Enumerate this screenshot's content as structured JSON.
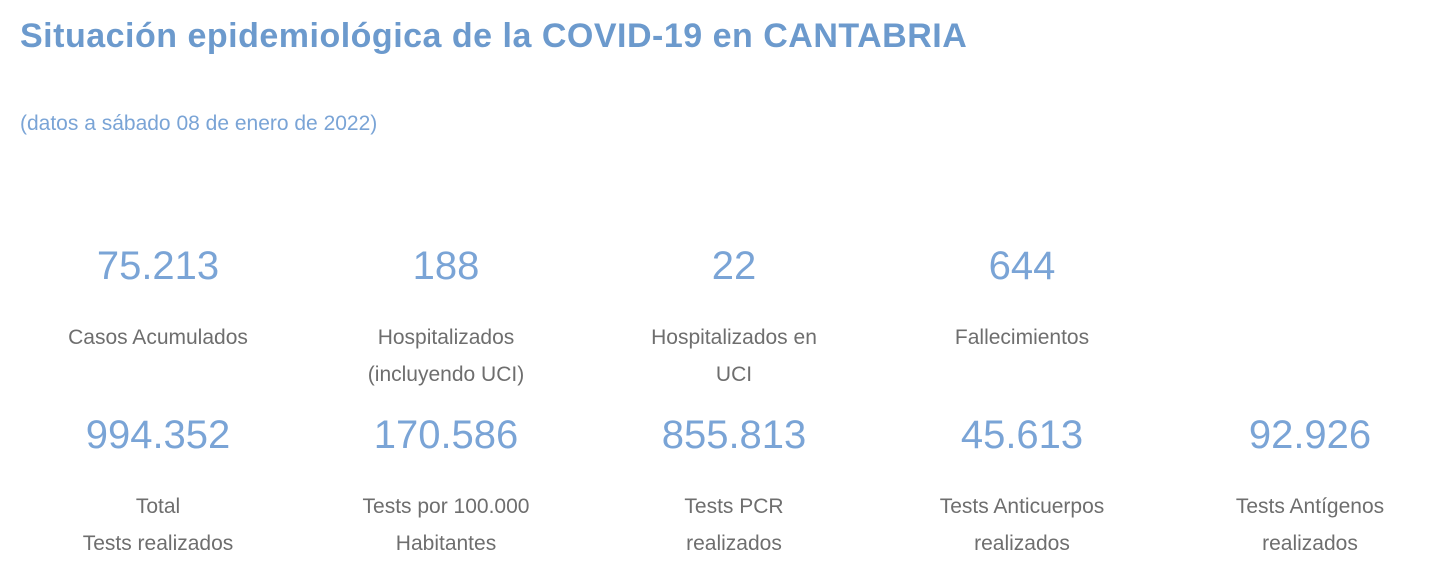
{
  "page": {
    "title": "Situación epidemiológica de la COVID-19 en CANTABRIA",
    "subtitle": "(datos a sábado 08 de enero de 2022)"
  },
  "colors": {
    "title_blue": "#6C9ACD",
    "value_blue": "#7AA4D6",
    "label_gray": "#6E6E6E",
    "background": "#FFFFFF"
  },
  "stats": {
    "row1": [
      {
        "value": "75.213",
        "label_line1": "Casos Acumulados",
        "label_line2": ""
      },
      {
        "value": "188",
        "label_line1": "Hospitalizados",
        "label_line2": "(incluyendo UCI)"
      },
      {
        "value": "22",
        "label_line1": "Hospitalizados en",
        "label_line2": "UCI"
      },
      {
        "value": "644",
        "label_line1": "Fallecimientos",
        "label_line2": ""
      }
    ],
    "row2": [
      {
        "value": "994.352",
        "label_line1": "Total",
        "label_line2": "Tests realizados"
      },
      {
        "value": "170.586",
        "label_line1": "Tests por 100.000",
        "label_line2": "Habitantes"
      },
      {
        "value": "855.813",
        "label_line1": "Tests PCR",
        "label_line2": "realizados"
      },
      {
        "value": "45.613",
        "label_line1": "Tests Anticuerpos",
        "label_line2": "realizados"
      },
      {
        "value": "92.926",
        "label_line1": "Tests Antígenos",
        "label_line2": "realizados"
      }
    ]
  }
}
